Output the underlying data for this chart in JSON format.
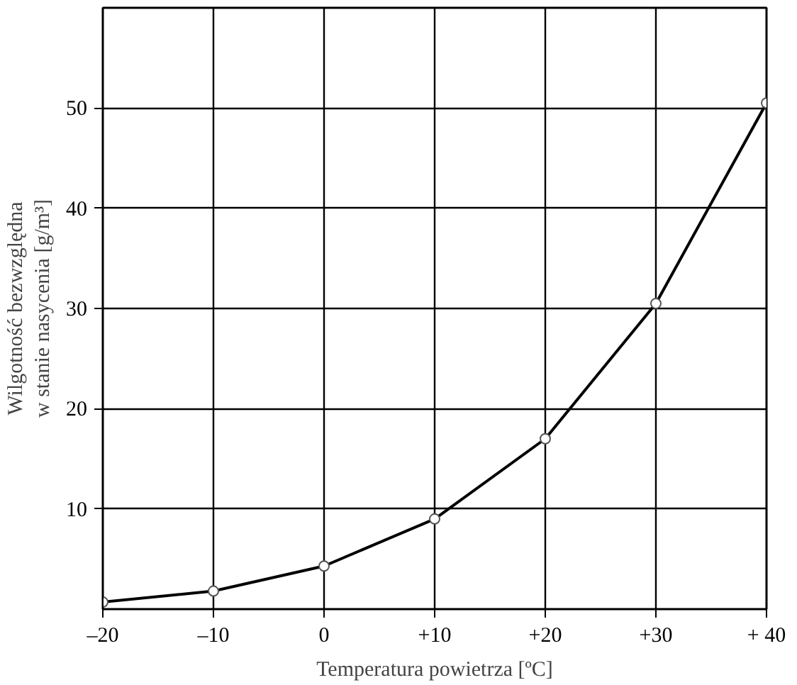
{
  "chart_data": {
    "type": "line",
    "xlabel": "Temperatura powietrza [ºC]",
    "ylabel": "Wilgotność bezwzględna\nw stanie nasycenia [g/m³]",
    "x": [
      -20,
      -10,
      0,
      10,
      20,
      30,
      40
    ],
    "series": [
      {
        "color": "#000000",
        "values": [
          0.7,
          1.8,
          4.3,
          9,
          17,
          30.5,
          50.5
        ]
      }
    ],
    "xlim": [
      -20,
      40
    ],
    "ylim": [
      0,
      60
    ],
    "xticks": [
      {
        "value": -20,
        "label": "–20"
      },
      {
        "value": -10,
        "label": "–10"
      },
      0,
      {
        "value": 10,
        "label": "+10"
      },
      {
        "value": 20,
        "label": "+20"
      },
      {
        "value": 30,
        "label": "+30"
      },
      {
        "value": 40,
        "label": "+ 40"
      }
    ],
    "yticks": [
      10,
      20,
      30,
      40,
      50
    ],
    "grid": true,
    "marker": "circle",
    "line_style": "solid"
  }
}
